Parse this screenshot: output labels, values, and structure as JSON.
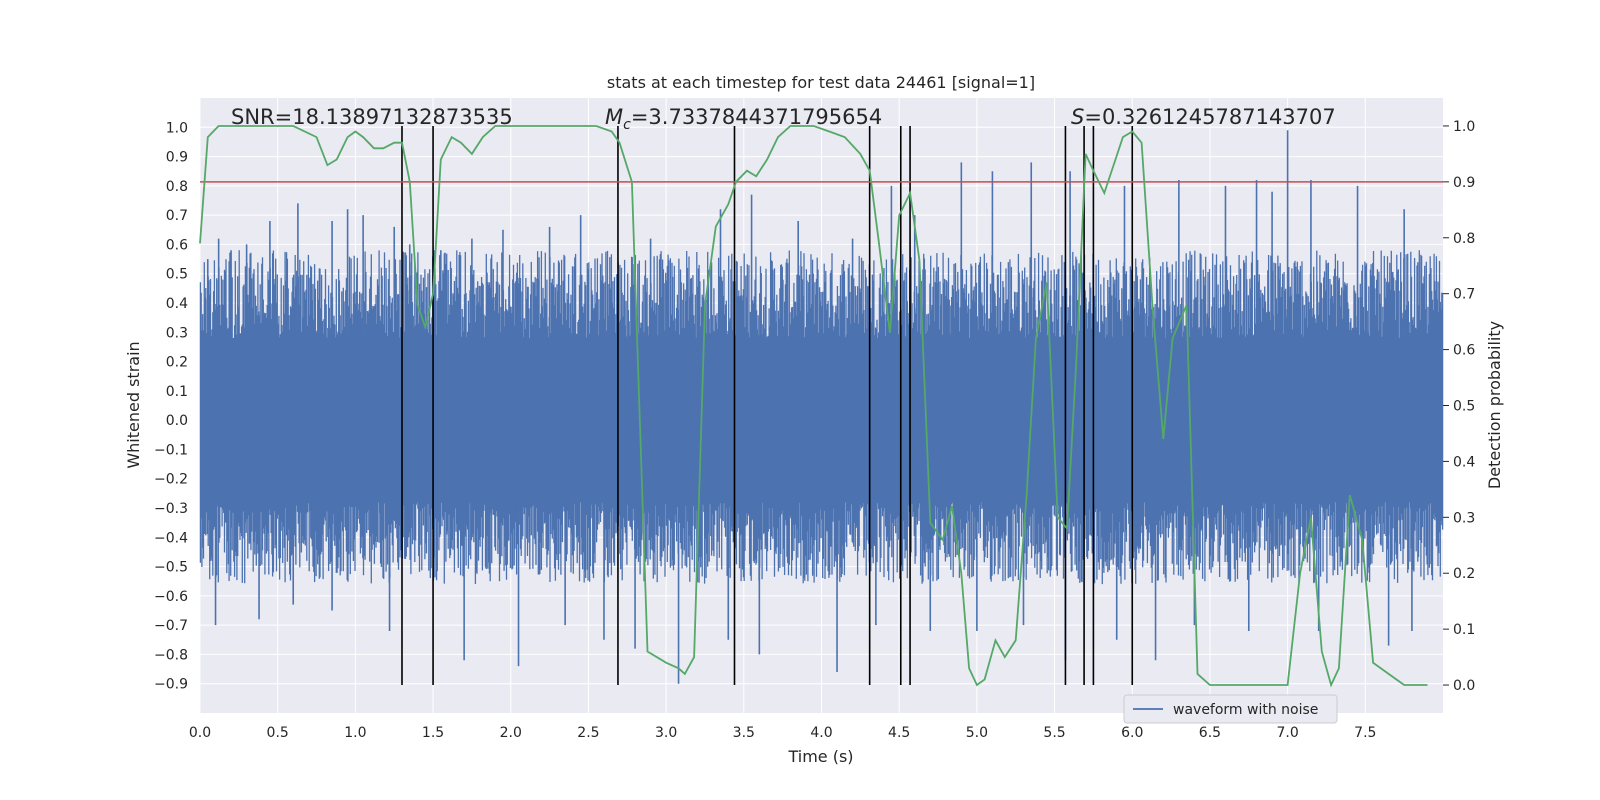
{
  "chart_data": {
    "type": "line",
    "title": "stats at each timestep for test data 24461 [signal=1]",
    "xlabel": "Time (s)",
    "ylabel": "Whitened strain",
    "y2label": "Detection probability",
    "xlim": [
      0.0,
      8.0
    ],
    "ylim": [
      -1.0,
      1.1
    ],
    "y2lim": [
      -0.05,
      1.05
    ],
    "xticks": [
      "0.0",
      "0.5",
      "1.0",
      "1.5",
      "2.0",
      "2.5",
      "3.0",
      "3.5",
      "4.0",
      "4.5",
      "5.0",
      "5.5",
      "6.0",
      "6.5",
      "7.0",
      "7.5"
    ],
    "yticks": [
      "−0.9",
      "−0.8",
      "−0.7",
      "−0.6",
      "−0.5",
      "−0.4",
      "−0.3",
      "−0.2",
      "−0.1",
      "0.0",
      "0.1",
      "0.2",
      "0.3",
      "0.4",
      "0.5",
      "0.6",
      "0.7",
      "0.8",
      "0.9",
      "1.0"
    ],
    "y2ticks": [
      "0.0",
      "0.1",
      "0.2",
      "0.3",
      "0.4",
      "0.5",
      "0.6",
      "0.7",
      "0.8",
      "0.9",
      "1.0"
    ],
    "annotations": {
      "snr": "SNR=18.13897132873535",
      "mc_symbol": "M",
      "mc_subscript": "c",
      "mc_value": "=3.7337844371795654",
      "s_symbol": "S",
      "s_value": "=0.3261245787143707"
    },
    "threshold": 0.9,
    "event_times": [
      1.3,
      1.5,
      2.69,
      3.44,
      4.31,
      4.51,
      4.57,
      5.57,
      5.69,
      5.75,
      6.0
    ],
    "waveform": {
      "name": "waveform with noise",
      "color": "#4c72b0",
      "spikes": [
        {
          "t": 0.05,
          "v": 0.55
        },
        {
          "t": 0.12,
          "v": 0.62
        },
        {
          "t": 0.2,
          "v": 0.58
        },
        {
          "t": 0.3,
          "v": 0.6
        },
        {
          "t": 0.45,
          "v": 0.68
        },
        {
          "t": 0.63,
          "v": 0.74
        },
        {
          "t": 0.85,
          "v": 0.68
        },
        {
          "t": 0.95,
          "v": 0.72
        },
        {
          "t": 1.05,
          "v": 0.7
        },
        {
          "t": 1.25,
          "v": 0.66
        },
        {
          "t": 1.35,
          "v": 0.6
        },
        {
          "t": 1.55,
          "v": 0.58
        },
        {
          "t": 1.75,
          "v": 0.62
        },
        {
          "t": 1.95,
          "v": 0.65
        },
        {
          "t": 2.25,
          "v": 0.66
        },
        {
          "t": 2.45,
          "v": 0.7
        },
        {
          "t": 2.9,
          "v": 0.62
        },
        {
          "t": 3.35,
          "v": 0.72
        },
        {
          "t": 3.55,
          "v": 0.77
        },
        {
          "t": 3.85,
          "v": 0.68
        },
        {
          "t": 4.2,
          "v": 0.62
        },
        {
          "t": 4.45,
          "v": 0.8
        },
        {
          "t": 4.6,
          "v": 0.7
        },
        {
          "t": 4.9,
          "v": 0.88
        },
        {
          "t": 5.1,
          "v": 0.85
        },
        {
          "t": 5.35,
          "v": 0.88
        },
        {
          "t": 5.6,
          "v": 0.85
        },
        {
          "t": 5.95,
          "v": 0.8
        },
        {
          "t": 6.3,
          "v": 0.82
        },
        {
          "t": 6.6,
          "v": 0.8
        },
        {
          "t": 6.8,
          "v": 0.82
        },
        {
          "t": 6.9,
          "v": 0.78
        },
        {
          "t": 7.0,
          "v": 0.99
        },
        {
          "t": 7.15,
          "v": 0.82
        },
        {
          "t": 7.45,
          "v": 0.8
        },
        {
          "t": 7.75,
          "v": 0.72
        },
        {
          "t": 0.38,
          "v": -0.68
        },
        {
          "t": 0.1,
          "v": -0.7
        },
        {
          "t": 0.6,
          "v": -0.63
        },
        {
          "t": 0.85,
          "v": -0.65
        },
        {
          "t": 1.22,
          "v": -0.72
        },
        {
          "t": 1.7,
          "v": -0.82
        },
        {
          "t": 2.05,
          "v": -0.84
        },
        {
          "t": 2.35,
          "v": -0.7
        },
        {
          "t": 2.6,
          "v": -0.75
        },
        {
          "t": 2.8,
          "v": -0.78
        },
        {
          "t": 3.08,
          "v": -0.9
        },
        {
          "t": 3.4,
          "v": -0.75
        },
        {
          "t": 3.6,
          "v": -0.8
        },
        {
          "t": 4.1,
          "v": -0.86
        },
        {
          "t": 4.35,
          "v": -0.7
        },
        {
          "t": 4.7,
          "v": -0.72
        },
        {
          "t": 5.0,
          "v": -0.72
        },
        {
          "t": 5.3,
          "v": -0.7
        },
        {
          "t": 5.57,
          "v": -0.82
        },
        {
          "t": 5.9,
          "v": -0.75
        },
        {
          "t": 6.15,
          "v": -0.82
        },
        {
          "t": 6.4,
          "v": -0.7
        },
        {
          "t": 6.75,
          "v": -0.72
        },
        {
          "t": 7.2,
          "v": -0.72
        },
        {
          "t": 7.65,
          "v": -0.77
        },
        {
          "t": 7.8,
          "v": -0.72
        }
      ]
    },
    "detection_probability": {
      "color": "#55a868",
      "x": [
        0.0,
        0.05,
        0.12,
        0.2,
        0.4,
        0.6,
        0.75,
        0.82,
        0.88,
        0.95,
        1.0,
        1.05,
        1.12,
        1.18,
        1.25,
        1.3,
        1.35,
        1.4,
        1.45,
        1.5,
        1.55,
        1.62,
        1.68,
        1.75,
        1.82,
        1.9,
        2.0,
        2.2,
        2.4,
        2.55,
        2.65,
        2.7,
        2.78,
        2.88,
        3.0,
        3.08,
        3.12,
        3.18,
        3.25,
        3.32,
        3.4,
        3.45,
        3.52,
        3.58,
        3.65,
        3.72,
        3.8,
        3.95,
        4.05,
        4.15,
        4.25,
        4.31,
        4.37,
        4.44,
        4.5,
        4.57,
        4.63,
        4.7,
        4.78,
        4.84,
        4.9,
        4.95,
        5.0,
        5.05,
        5.12,
        5.18,
        5.25,
        5.32,
        5.38,
        5.45,
        5.52,
        5.58,
        5.64,
        5.7,
        5.75,
        5.82,
        5.88,
        5.94,
        6.0,
        6.06,
        6.13,
        6.2,
        6.26,
        6.35,
        6.42,
        6.5,
        6.6,
        6.7,
        6.8,
        6.95,
        7.0,
        7.08,
        7.15,
        7.22,
        7.28,
        7.33,
        7.4,
        7.48,
        7.55,
        7.65,
        7.75,
        7.9
      ],
      "y": [
        0.79,
        0.98,
        1.0,
        1.0,
        1.0,
        1.0,
        0.98,
        0.93,
        0.94,
        0.98,
        0.99,
        0.98,
        0.96,
        0.96,
        0.97,
        0.97,
        0.9,
        0.68,
        0.64,
        0.7,
        0.94,
        0.98,
        0.97,
        0.95,
        0.98,
        1.0,
        1.0,
        1.0,
        1.0,
        1.0,
        0.99,
        0.97,
        0.9,
        0.06,
        0.04,
        0.03,
        0.02,
        0.05,
        0.68,
        0.82,
        0.86,
        0.9,
        0.92,
        0.91,
        0.94,
        0.98,
        1.0,
        1.0,
        0.99,
        0.98,
        0.95,
        0.92,
        0.79,
        0.63,
        0.84,
        0.88,
        0.76,
        0.29,
        0.26,
        0.32,
        0.2,
        0.03,
        0.0,
        0.01,
        0.08,
        0.05,
        0.08,
        0.34,
        0.62,
        0.72,
        0.3,
        0.28,
        0.58,
        0.95,
        0.92,
        0.88,
        0.93,
        0.98,
        0.99,
        0.97,
        0.68,
        0.44,
        0.62,
        0.68,
        0.02,
        0.0,
        0.0,
        0.0,
        0.0,
        0.0,
        0.0,
        0.2,
        0.3,
        0.06,
        0.0,
        0.03,
        0.34,
        0.26,
        0.04,
        0.02,
        0.0,
        0.0
      ]
    }
  },
  "legend": {
    "label": "waveform with noise"
  },
  "colors": {
    "axes_bg": "#eaeaf2",
    "grid": "#ffffff",
    "threshold": "#c44e52",
    "event_line": "#000000",
    "waveform": "#4c72b0",
    "probability": "#55a868"
  }
}
